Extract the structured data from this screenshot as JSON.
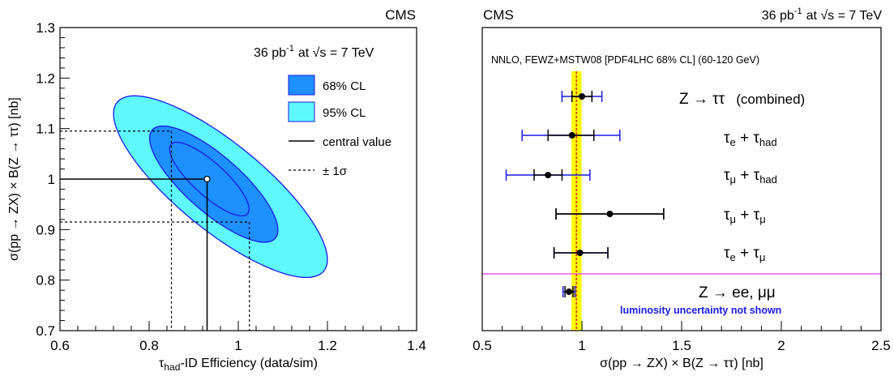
{
  "chart_data": [
    {
      "type": "contour",
      "header": "CMS",
      "lumi_text": "36 pb",
      "lumi_sup": "-1",
      "energy_text": "at √s = 7 TeV",
      "xlabel": "τhad-ID Efficiency (data/sim)",
      "xlabel_main": "τ",
      "xlabel_sub": "had",
      "xlabel_rest": "-ID Efficiency (data/sim)",
      "ylabel": "σ(pp → ZX) × B(Z → ττ)  [nb]",
      "xlim": [
        0.6,
        1.4
      ],
      "ylim": [
        0.7,
        1.3
      ],
      "xticks": [
        "0.6",
        "0.8",
        "1",
        "1.2",
        "1.4"
      ],
      "yticks": [
        "0.7",
        "0.8",
        "0.9",
        "1",
        "1.1",
        "1.2",
        "1.3"
      ],
      "central_value": {
        "x": 0.93,
        "y": 1.0
      },
      "sigma_x": [
        0.85,
        1.025
      ],
      "sigma_y": [
        0.915,
        1.095
      ],
      "legend": [
        {
          "label": "68% CL",
          "color": "#1e90ff"
        },
        {
          "label": "95% CL",
          "color": "#5ff8ff"
        },
        {
          "label": "central value",
          "style": "solid"
        },
        {
          "label": "± 1σ",
          "style": "dashed"
        }
      ],
      "contours": [
        {
          "name": "95% CL",
          "color": "#5ff8ff",
          "cx": 0.96,
          "cy": 0.985,
          "a": 0.286,
          "b": 0.09,
          "angle_deg": -35
        },
        {
          "name": "68% CL",
          "color": "#1e90ff",
          "cx": 0.945,
          "cy": 0.99,
          "a": 0.175,
          "b": 0.058,
          "angle_deg": -37
        },
        {
          "name": "1σ",
          "color": "#1e90ff",
          "cx": 0.935,
          "cy": 1.0,
          "a": 0.11,
          "b": 0.034,
          "angle_deg": -38
        }
      ]
    },
    {
      "type": "errorbar",
      "header_left": "CMS",
      "lumi_text": "36 pb",
      "lumi_sup": "-1",
      "energy_text": "at √s = 7 TeV",
      "theory_label": "NNLO, FEWZ+MSTW08 [PDF4LHC 68% CL] (60-120 GeV)",
      "theory_central": 0.972,
      "theory_band": [
        0.948,
        0.998
      ],
      "xlabel": "σ(pp → ZX) × B(Z → ττ)  [nb]",
      "xlim": [
        0.5,
        2.5
      ],
      "xticks": [
        "0.5",
        "1",
        "1.5",
        "2",
        "2.5"
      ],
      "note": "luminosity uncertainty not shown",
      "measurements": [
        {
          "label": "Z → ττ",
          "suffix": "(combined)",
          "value": 1.0,
          "stat": [
            0.95,
            1.05
          ],
          "total": [
            0.9,
            1.1
          ],
          "color": "#1a1ae6"
        },
        {
          "label": "τe + τhad",
          "l1": "τ",
          "s1": "e",
          "l2": " + τ",
          "s2": "had",
          "value": 0.95,
          "stat": [
            0.83,
            1.06
          ],
          "total": [
            0.7,
            1.19
          ],
          "color": "#1a1ae6"
        },
        {
          "label": "τμ + τhad",
          "l1": "τ",
          "s1": "μ",
          "l2": " + τ",
          "s2": "had",
          "value": 0.83,
          "stat": [
            0.76,
            0.9
          ],
          "total": [
            0.62,
            1.04
          ],
          "color": "#1a1ae6"
        },
        {
          "label": "τμ + τμ",
          "l1": "τ",
          "s1": "μ",
          "l2": " + τ",
          "s2": "μ",
          "value": 1.14,
          "stat": [
            0.87,
            1.41
          ],
          "total": [
            0.87,
            1.41
          ],
          "color": "#000000"
        },
        {
          "label": "τe + τμ",
          "l1": "τ",
          "s1": "e",
          "l2": " + τ",
          "s2": "μ",
          "value": 0.99,
          "stat": [
            0.86,
            1.13
          ],
          "total": [
            0.86,
            1.13
          ],
          "color": "#1a1ae6"
        },
        {
          "label": "Z → ee, μμ",
          "value": 0.935,
          "stat": [
            0.915,
            0.955
          ],
          "total": [
            0.905,
            0.965
          ],
          "color": "#1a1ae6"
        }
      ]
    }
  ]
}
